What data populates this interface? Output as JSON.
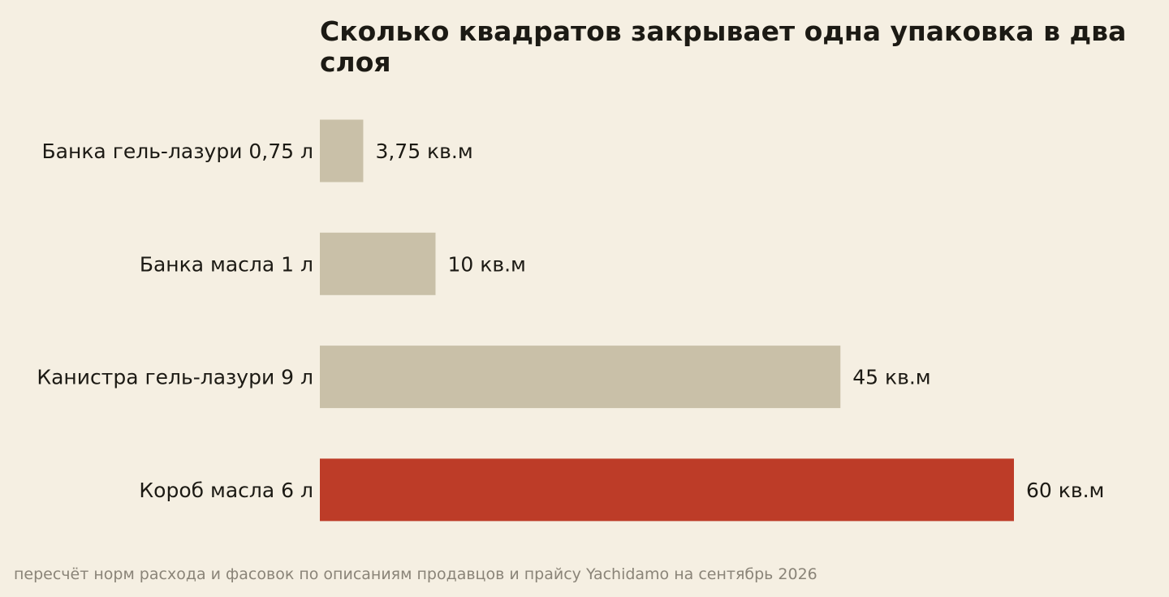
{
  "chart_data": {
    "type": "bar",
    "orientation": "horizontal",
    "title": "Сколько квадратов закрывает одна упаковка в два слоя",
    "title_lines": [
      "Сколько квадратов закрывает одна упаковка в два",
      "слоя"
    ],
    "categories": [
      "Банка гель-лазури 0,75 л",
      "Банка масла 1 л",
      "Канистра гель-лазури 9 л",
      "Короб масла 6 л"
    ],
    "values": [
      3.75,
      10,
      45,
      60
    ],
    "value_labels": [
      "3,75 кв.м",
      "10 кв.м",
      "45 кв.м",
      "60 кв.м"
    ],
    "highlight_index": 3,
    "xlim": [
      0,
      60
    ],
    "grid": false,
    "legend": "none",
    "xlabel": "",
    "ylabel": "",
    "source": "пересчёт норм расхода и фасовок по описаниям продавцов и прайсу Yachidamo на сентябрь 2026"
  },
  "colors": {
    "background": "#f5efe2",
    "bar": "#c9c0a8",
    "highlight": "#bd3c28",
    "text": "#1c1a14",
    "source_text": "#8a8478"
  }
}
